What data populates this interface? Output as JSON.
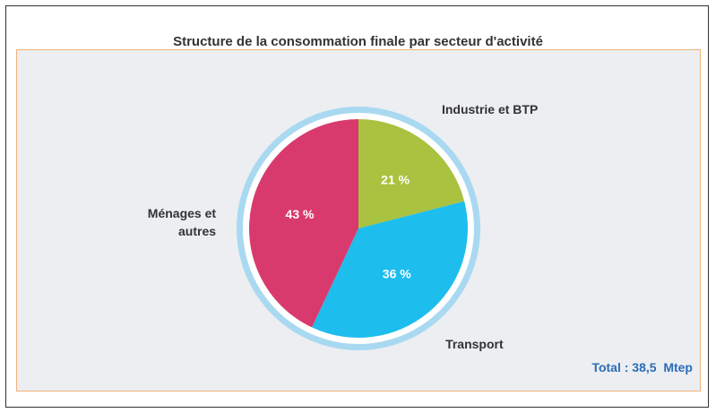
{
  "chart_data": {
    "type": "pie",
    "title": "Structure de la consommation finale par secteur d'activité",
    "categories": [
      "Industrie et BTP",
      "Transport",
      "Ménages et autres"
    ],
    "values": [
      21,
      36,
      43
    ],
    "value_labels": [
      "21 %",
      "36 %",
      "43 %"
    ],
    "colors": [
      "#a9c23f",
      "#1dbdee",
      "#d93a6d"
    ],
    "annotation": "Total : 38,5  Mtep"
  }
}
